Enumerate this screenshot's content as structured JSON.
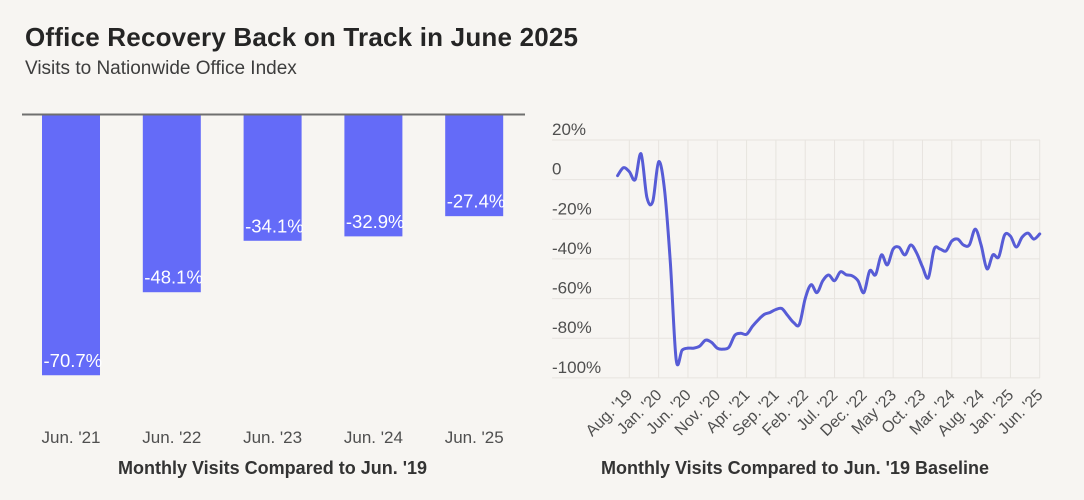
{
  "header": {
    "title": "Office Recovery Back on Track in June 2025",
    "subtitle": "Visits to Nationwide Office Index"
  },
  "colors": {
    "background": "#f7f5f2",
    "bar_fill": "#646bf8",
    "line_stroke": "#575cd6",
    "grid": "#e7e4df",
    "zero_axis": "#6f6f6f",
    "title_text": "#252525",
    "subtitle_text": "#3d3d3d",
    "tick_text": "#4f4f4f",
    "caption_text": "#333333",
    "bar_label_text": "#ffffff"
  },
  "chart_data": [
    {
      "type": "bar",
      "title": "Monthly Visits Compared to Jun. '19",
      "categories": [
        "Jun. '21",
        "Jun. '22",
        "Jun. '23",
        "Jun. '24",
        "Jun. '25"
      ],
      "values": [
        -70.7,
        -48.1,
        -34.1,
        -32.9,
        -27.4
      ],
      "data_labels": [
        "-70.7%",
        "-48.1%",
        "-34.1%",
        "-32.9%",
        "-27.4%"
      ],
      "unit": "%",
      "ylim": [
        -75,
        0
      ],
      "baseline_at_top": true
    },
    {
      "type": "line",
      "title": "Monthly Visits Compared to Jun. '19 Baseline",
      "ylim": [
        -100,
        20
      ],
      "grid": "on",
      "y_ticks": [
        {
          "value": 20,
          "label": "20%"
        },
        {
          "value": 0,
          "label": "0"
        },
        {
          "value": -20,
          "label": "-20%"
        },
        {
          "value": -40,
          "label": "-40%"
        },
        {
          "value": -60,
          "label": "-60%"
        },
        {
          "value": -80,
          "label": "-80%"
        },
        {
          "value": -100,
          "label": "-100%"
        }
      ],
      "x_ticks": [
        {
          "index": 2,
          "label": "Aug. '19"
        },
        {
          "index": 7,
          "label": "Jan. '20"
        },
        {
          "index": 12,
          "label": "Jun. '20"
        },
        {
          "index": 17,
          "label": "Nov. '20"
        },
        {
          "index": 22,
          "label": "Apr. '21"
        },
        {
          "index": 27,
          "label": "Sep. '21"
        },
        {
          "index": 32,
          "label": "Feb. '22"
        },
        {
          "index": 37,
          "label": "Jul. '22"
        },
        {
          "index": 42,
          "label": "Dec. '22"
        },
        {
          "index": 47,
          "label": "May '23"
        },
        {
          "index": 52,
          "label": "Oct. '23"
        },
        {
          "index": 57,
          "label": "Mar. '24"
        },
        {
          "index": 62,
          "label": "Aug. '24"
        },
        {
          "index": 67,
          "label": "Jan. '25"
        },
        {
          "index": 72,
          "label": "Jun. '25"
        }
      ],
      "x": [
        "2019-06",
        "2019-07",
        "2019-08",
        "2019-09",
        "2019-10",
        "2019-11",
        "2019-12",
        "2020-01",
        "2020-02",
        "2020-03",
        "2020-04",
        "2020-05",
        "2020-06",
        "2020-07",
        "2020-08",
        "2020-09",
        "2020-10",
        "2020-11",
        "2020-12",
        "2021-01",
        "2021-02",
        "2021-03",
        "2021-04",
        "2021-05",
        "2021-06",
        "2021-07",
        "2021-08",
        "2021-09",
        "2021-10",
        "2021-11",
        "2021-12",
        "2022-01",
        "2022-02",
        "2022-03",
        "2022-04",
        "2022-05",
        "2022-06",
        "2022-07",
        "2022-08",
        "2022-09",
        "2022-10",
        "2022-11",
        "2022-12",
        "2023-01",
        "2023-02",
        "2023-03",
        "2023-04",
        "2023-05",
        "2023-06",
        "2023-07",
        "2023-08",
        "2023-09",
        "2023-10",
        "2023-11",
        "2023-12",
        "2024-01",
        "2024-02",
        "2024-03",
        "2024-04",
        "2024-05",
        "2024-06",
        "2024-07",
        "2024-08",
        "2024-09",
        "2024-10",
        "2024-11",
        "2024-12",
        "2025-01",
        "2025-02",
        "2025-03",
        "2025-04",
        "2025-05",
        "2025-06"
      ],
      "values": [
        2,
        6,
        4,
        0,
        13,
        -9,
        -11,
        9,
        -5,
        -42,
        -91,
        -86,
        -85,
        -85,
        -84,
        -81,
        -82,
        -85,
        -85.5,
        -84.5,
        -78.5,
        -77.5,
        -78,
        -74,
        -70.7,
        -68,
        -67,
        -65.5,
        -65,
        -68.5,
        -72,
        -73,
        -60,
        -53,
        -57,
        -51,
        -48.1,
        -51,
        -46.5,
        -48,
        -48.5,
        -51,
        -57,
        -46,
        -48,
        -38,
        -43,
        -35,
        -34.1,
        -38,
        -33,
        -37,
        -44,
        -49.5,
        -35,
        -35,
        -36,
        -31,
        -30,
        -33,
        -32.9,
        -25,
        -33,
        -45,
        -38,
        -39,
        -28,
        -28.5,
        -34,
        -29,
        -27,
        -30,
        -27.4
      ]
    }
  ]
}
